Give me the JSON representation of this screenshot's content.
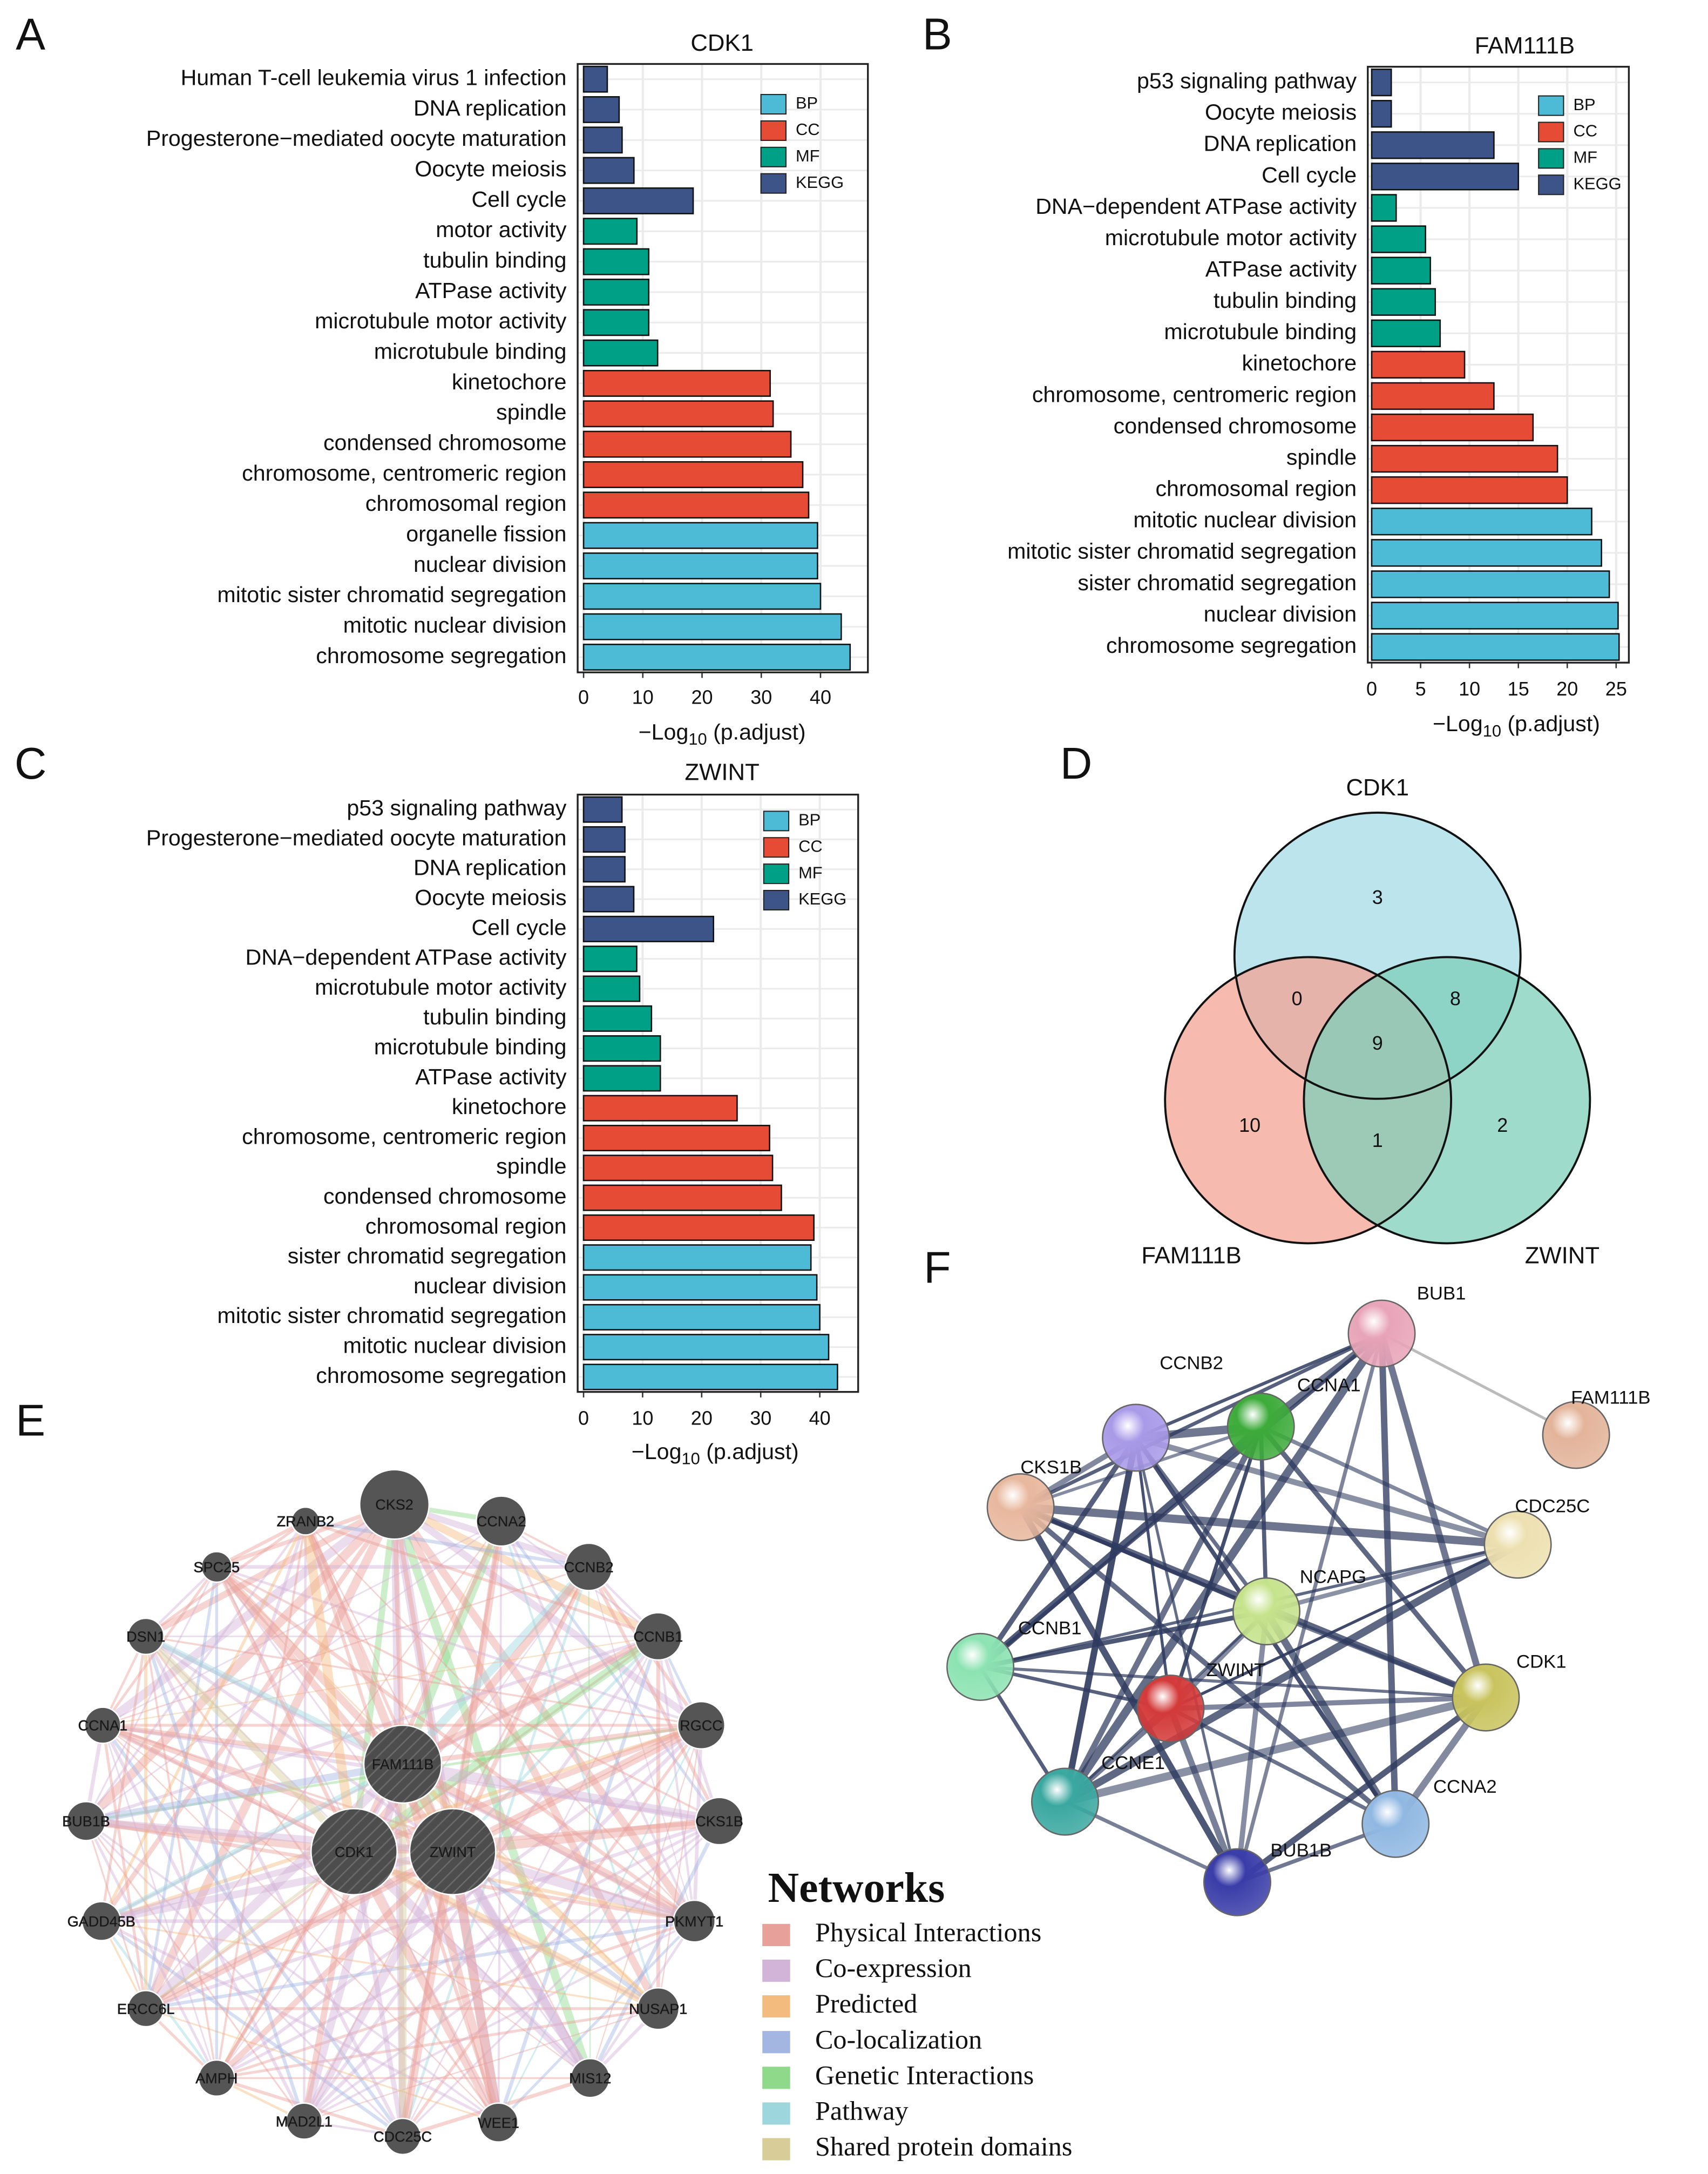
{
  "chart_data": [
    {
      "type": "barh",
      "panel": "A",
      "title": "CDK1",
      "categories": [
        "Human T-cell leukemia virus 1 infection",
        "DNA replication",
        "Progesterone−mediated oocyte maturation",
        "Oocyte meiosis",
        "Cell cycle",
        "motor activity",
        "tubulin binding",
        "ATPase activity",
        "microtubule motor activity",
        "microtubule binding",
        "kinetochore",
        "spindle",
        "condensed chromosome",
        "chromosome, centromeric region",
        "chromosomal region",
        "organelle fission",
        "nuclear division",
        "mitotic sister chromatid segregation",
        "mitotic nuclear division",
        "chromosome segregation"
      ],
      "series": [
        {
          "name": "BP",
          "color": "#4dbbd5",
          "values": [
            null,
            null,
            null,
            null,
            null,
            null,
            null,
            null,
            null,
            null,
            null,
            null,
            null,
            null,
            null,
            39.5,
            39.5,
            40,
            43.5,
            45
          ]
        },
        {
          "name": "CC",
          "color": "#e64b35",
          "values": [
            null,
            null,
            null,
            null,
            null,
            null,
            null,
            null,
            null,
            null,
            31.5,
            32,
            35,
            37,
            38,
            null,
            null,
            null,
            null,
            null
          ]
        },
        {
          "name": "MF",
          "color": "#00a087",
          "values": [
            null,
            null,
            null,
            null,
            null,
            9,
            11,
            11,
            11,
            12.5,
            null,
            null,
            null,
            null,
            null,
            null,
            null,
            null,
            null,
            null
          ]
        },
        {
          "name": "KEGG",
          "color": "#3c5488",
          "values": [
            4,
            6,
            6.5,
            8.5,
            18.5,
            null,
            null,
            null,
            null,
            null,
            null,
            null,
            null,
            null,
            null,
            null,
            null,
            null,
            null,
            null
          ]
        }
      ],
      "xlim": [
        -1,
        48
      ],
      "xticks": [
        0,
        10,
        20,
        30,
        40
      ],
      "x_label": {
        "text": "−Log",
        "subscript": "10",
        "suffix": " (p.adjust)"
      },
      "grid": true
    },
    {
      "type": "barh",
      "panel": "B",
      "title": "FAM111B",
      "categories": [
        "p53 signaling pathway",
        "Oocyte meiosis",
        "DNA replication",
        "Cell cycle",
        "DNA−dependent ATPase activity",
        "microtubule motor activity",
        "ATPase activity",
        "tubulin binding",
        "microtubule binding",
        "kinetochore",
        "chromosome, centromeric region",
        "condensed chromosome",
        "spindle",
        "chromosomal region",
        "mitotic nuclear division",
        "mitotic sister chromatid segregation",
        "sister chromatid segregation",
        "nuclear division",
        "chromosome segregation"
      ],
      "series": [
        {
          "name": "BP",
          "color": "#4dbbd5",
          "values": [
            null,
            null,
            null,
            null,
            null,
            null,
            null,
            null,
            null,
            null,
            null,
            null,
            null,
            null,
            22.5,
            23.5,
            24.3,
            25.2,
            25.3
          ]
        },
        {
          "name": "CC",
          "color": "#e64b35",
          "values": [
            null,
            null,
            null,
            null,
            null,
            null,
            null,
            null,
            null,
            9.5,
            12.5,
            16.5,
            19,
            20,
            null,
            null,
            null,
            null,
            null
          ]
        },
        {
          "name": "MF",
          "color": "#00a087",
          "values": [
            null,
            null,
            null,
            null,
            2.5,
            5.5,
            6,
            6.5,
            7,
            null,
            null,
            null,
            null,
            null,
            null,
            null,
            null,
            null,
            null
          ]
        },
        {
          "name": "KEGG",
          "color": "#3c5488",
          "values": [
            2,
            2,
            12.5,
            15,
            null,
            null,
            null,
            null,
            null,
            null,
            null,
            null,
            null,
            null,
            null,
            null,
            null,
            null,
            null
          ]
        }
      ],
      "xlim": [
        -0.4,
        26.3
      ],
      "xticks": [
        0,
        5,
        10,
        15,
        20,
        25
      ],
      "x_label": {
        "text": "−Log",
        "subscript": "10",
        "suffix": " (p.adjust)"
      },
      "grid": true
    },
    {
      "type": "barh",
      "panel": "C",
      "title": "ZWINT",
      "categories": [
        "p53 signaling pathway",
        "Progesterone−mediated oocyte maturation",
        "DNA replication",
        "Oocyte meiosis",
        "Cell cycle",
        "DNA−dependent ATPase activity",
        "microtubule motor activity",
        "tubulin binding",
        "microtubule binding",
        "ATPase activity",
        "kinetochore",
        "chromosome, centromeric region",
        "spindle",
        "condensed chromosome",
        "chromosomal region",
        "sister chromatid segregation",
        "nuclear division",
        "mitotic sister chromatid segregation",
        "mitotic nuclear division",
        "chromosome segregation"
      ],
      "series": [
        {
          "name": "BP",
          "color": "#4dbbd5",
          "values": [
            null,
            null,
            null,
            null,
            null,
            null,
            null,
            null,
            null,
            null,
            null,
            null,
            null,
            null,
            null,
            38.5,
            39.5,
            40,
            41.5,
            43
          ]
        },
        {
          "name": "CC",
          "color": "#e64b35",
          "values": [
            null,
            null,
            null,
            null,
            null,
            null,
            null,
            null,
            null,
            null,
            26,
            31.5,
            32,
            33.5,
            39,
            null,
            null,
            null,
            null,
            null
          ]
        },
        {
          "name": "MF",
          "color": "#00a087",
          "values": [
            null,
            null,
            null,
            null,
            null,
            9,
            9.5,
            11.5,
            13,
            13,
            null,
            null,
            null,
            null,
            null,
            null,
            null,
            null,
            null,
            null
          ]
        },
        {
          "name": "KEGG",
          "color": "#3c5488",
          "values": [
            6.5,
            7,
            7,
            8.5,
            22,
            null,
            null,
            null,
            null,
            null,
            null,
            null,
            null,
            null,
            null,
            null,
            null,
            null,
            null,
            null
          ]
        }
      ],
      "xlim": [
        -1,
        46.5
      ],
      "xticks": [
        0,
        10,
        20,
        30,
        40
      ],
      "x_label": {
        "text": "−Log",
        "subscript": "10",
        "suffix": " (p.adjust)"
      },
      "grid": true
    },
    {
      "type": "venn",
      "panel": "D",
      "sets": [
        {
          "name": "CDK1",
          "color": "#a6dbe6"
        },
        {
          "name": "FAM111B",
          "color": "#f3a394"
        },
        {
          "name": "ZWINT",
          "color": "#7fcfba"
        }
      ],
      "regions": [
        {
          "sets": [
            0
          ],
          "value": 3
        },
        {
          "sets": [
            0,
            1
          ],
          "value": 0
        },
        {
          "sets": [
            0,
            2
          ],
          "value": 8
        },
        {
          "sets": [
            0,
            1,
            2
          ],
          "value": 9
        },
        {
          "sets": [
            1
          ],
          "value": 10
        },
        {
          "sets": [
            1,
            2
          ],
          "value": 1
        },
        {
          "sets": [
            2
          ],
          "value": 2
        }
      ]
    },
    {
      "type": "network",
      "panel": "E",
      "nodes": [
        "CKS2",
        "CCNA2",
        "CCNB2",
        "CCNB1",
        "RGCC",
        "CKS1B",
        "PKMYT1",
        "NUSAP1",
        "MIS12",
        "WEE1",
        "CDC25C",
        "MAD2L1",
        "AMPH",
        "ERCC6L",
        "GADD45B",
        "BUB1B",
        "CCNA1",
        "DSN1",
        "SPC25",
        "ZRANB2",
        "FAM111B",
        "CDK1",
        "ZWINT"
      ],
      "legend_title": "Networks",
      "legend": [
        {
          "name": "Physical Interactions",
          "color": "#e8a09a"
        },
        {
          "name": "Co-expression",
          "color": "#d2b4d8"
        },
        {
          "name": "Predicted",
          "color": "#f4bb7e"
        },
        {
          "name": "Co-localization",
          "color": "#a3b6e2"
        },
        {
          "name": "Genetic Interactions",
          "color": "#8ed98a"
        },
        {
          "name": "Pathway",
          "color": "#9ed6de"
        },
        {
          "name": "Shared protein domains",
          "color": "#d8cd98"
        }
      ]
    },
    {
      "type": "network",
      "panel": "F",
      "nodes": [
        {
          "name": "BUB1",
          "color": "#e8a4b8"
        },
        {
          "name": "CCNB2",
          "color": "#a99ae8"
        },
        {
          "name": "CCNA1",
          "color": "#3dab3a"
        },
        {
          "name": "FAM111B",
          "color": "#e3b49a"
        },
        {
          "name": "CKS1B",
          "color": "#e8b89e"
        },
        {
          "name": "CDC25C",
          "color": "#ede0b0"
        },
        {
          "name": "NCAPG",
          "color": "#c6e38c"
        },
        {
          "name": "CCNB1",
          "color": "#8ce3b2"
        },
        {
          "name": "ZWINT",
          "color": "#d43a3a"
        },
        {
          "name": "CDK1",
          "color": "#c9c45e"
        },
        {
          "name": "CCNE1",
          "color": "#3aa8a0"
        },
        {
          "name": "CCNA2",
          "color": "#90b8e2"
        },
        {
          "name": "BUB1B",
          "color": "#3a3da8"
        }
      ]
    }
  ]
}
